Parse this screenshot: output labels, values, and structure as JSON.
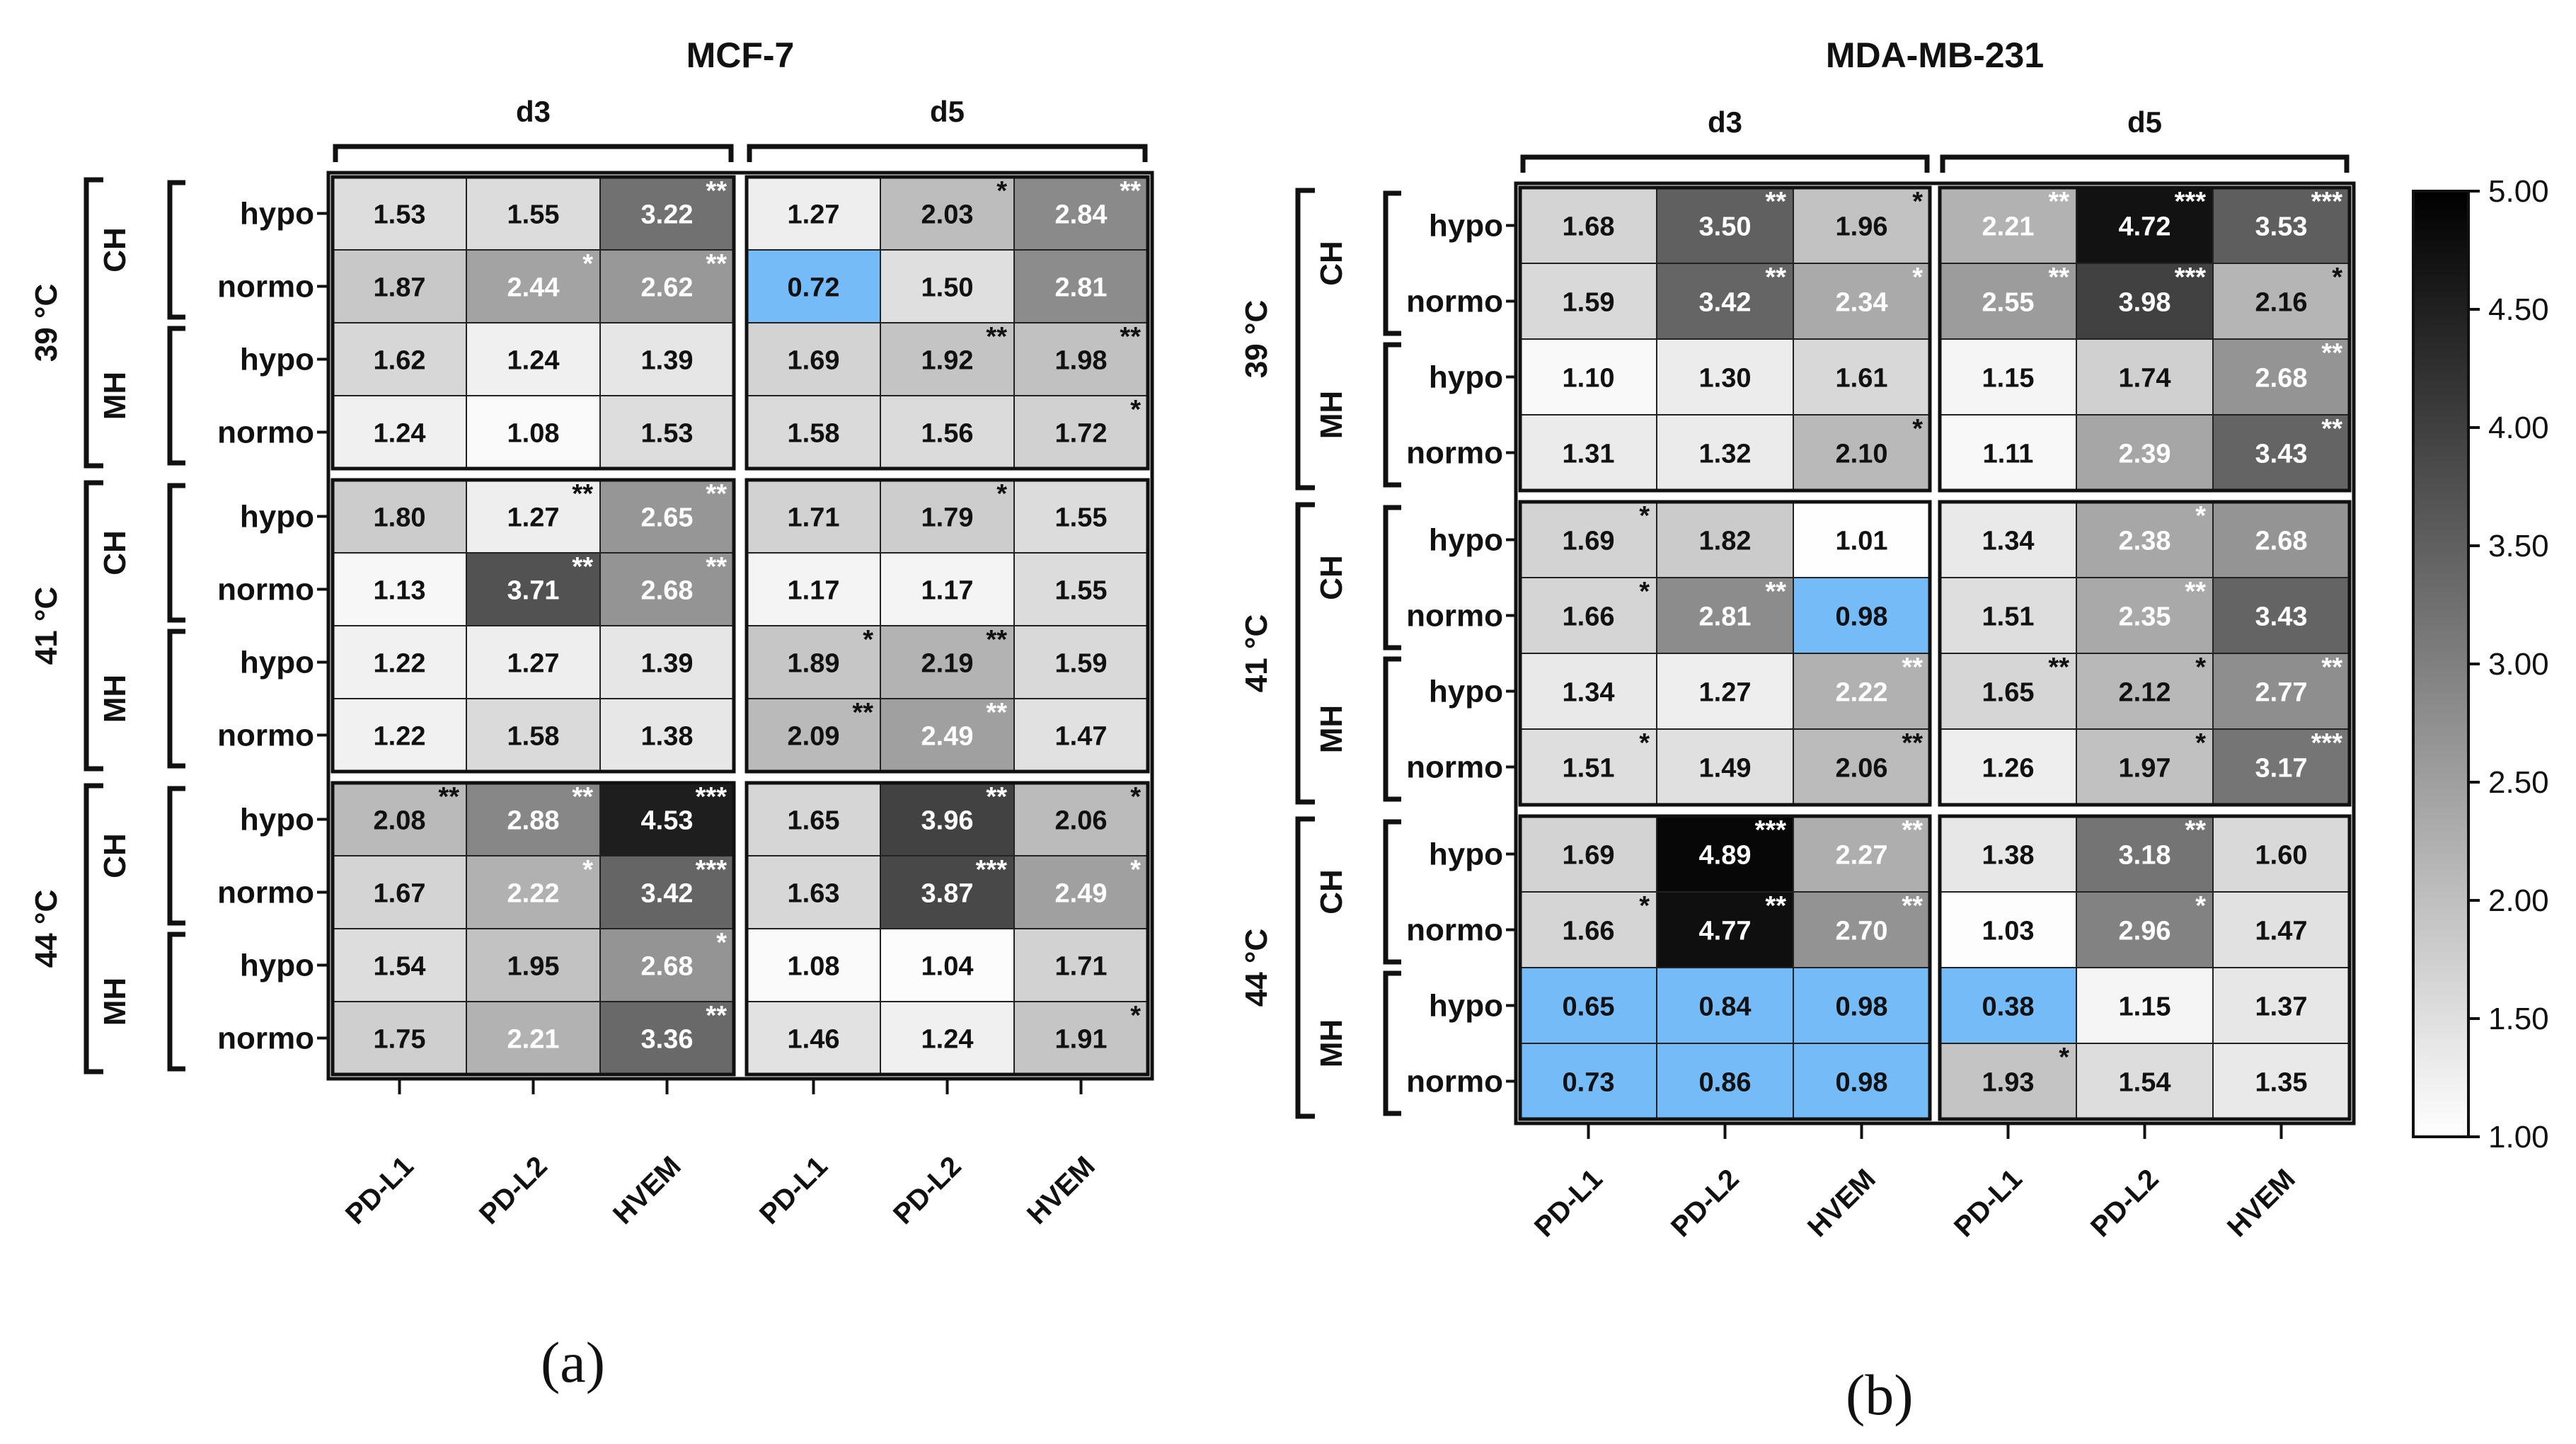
{
  "figure": {
    "panel_labels": [
      "(a)",
      "(b)"
    ],
    "colorbar": {
      "min": 1.0,
      "max": 5.0,
      "ticks": [
        "5.00",
        "4.50",
        "4.00",
        "3.50",
        "3.00",
        "2.50",
        "2.00",
        "1.50",
        "1.00"
      ],
      "below_min_color": "#74bbf8",
      "low_color": "#ffffff",
      "high_color": "#000000"
    }
  },
  "chart_data": [
    {
      "type": "heatmap",
      "title": "MCF-7",
      "panel_label": "(a)",
      "day_groups": [
        "d3",
        "d5"
      ],
      "columns": [
        "PD-L1",
        "PD-L2",
        "HVEM"
      ],
      "temperatures": [
        "39 °C",
        "41 °C",
        "44 °C"
      ],
      "methods": [
        "CH",
        "MH"
      ],
      "conditions": [
        "hypo",
        "normo"
      ],
      "rows": [
        {
          "temp": "39 °C",
          "method": "CH",
          "cond": "hypo",
          "values": [
            1.53,
            1.55,
            3.22,
            1.27,
            2.03,
            2.84
          ],
          "stars": [
            "",
            "",
            "**",
            "",
            "*",
            "**"
          ]
        },
        {
          "temp": "39 °C",
          "method": "CH",
          "cond": "normo",
          "values": [
            1.87,
            2.44,
            2.62,
            0.72,
            1.5,
            2.81
          ],
          "stars": [
            "",
            "*",
            "**",
            "",
            "",
            ""
          ]
        },
        {
          "temp": "39 °C",
          "method": "MH",
          "cond": "hypo",
          "values": [
            1.62,
            1.24,
            1.39,
            1.69,
            1.92,
            1.98
          ],
          "stars": [
            "",
            "",
            "",
            "",
            "**",
            "**"
          ]
        },
        {
          "temp": "39 °C",
          "method": "MH",
          "cond": "normo",
          "values": [
            1.24,
            1.08,
            1.53,
            1.58,
            1.56,
            1.72
          ],
          "stars": [
            "",
            "",
            "",
            "",
            "",
            "*"
          ]
        },
        {
          "temp": "41 °C",
          "method": "CH",
          "cond": "hypo",
          "values": [
            1.8,
            1.27,
            2.65,
            1.71,
            1.79,
            1.55
          ],
          "stars": [
            "",
            "**",
            "**",
            "",
            "*",
            ""
          ]
        },
        {
          "temp": "41 °C",
          "method": "CH",
          "cond": "normo",
          "values": [
            1.13,
            3.71,
            2.68,
            1.17,
            1.17,
            1.55
          ],
          "stars": [
            "",
            "**",
            "**",
            "",
            "",
            ""
          ]
        },
        {
          "temp": "41 °C",
          "method": "MH",
          "cond": "hypo",
          "values": [
            1.22,
            1.27,
            1.39,
            1.89,
            2.19,
            1.59
          ],
          "stars": [
            "",
            "",
            "",
            "*",
            "**",
            ""
          ]
        },
        {
          "temp": "41 °C",
          "method": "MH",
          "cond": "normo",
          "values": [
            1.22,
            1.58,
            1.38,
            2.09,
            2.49,
            1.47
          ],
          "stars": [
            "",
            "",
            "",
            "**",
            "**",
            ""
          ]
        },
        {
          "temp": "44 °C",
          "method": "CH",
          "cond": "hypo",
          "values": [
            2.08,
            2.88,
            4.53,
            1.65,
            3.96,
            2.06
          ],
          "stars": [
            "**",
            "**",
            "***",
            "",
            "**",
            "*"
          ]
        },
        {
          "temp": "44 °C",
          "method": "CH",
          "cond": "normo",
          "values": [
            1.67,
            2.22,
            3.42,
            1.63,
            3.87,
            2.49
          ],
          "stars": [
            "",
            "*",
            "***",
            "",
            "***",
            "*"
          ]
        },
        {
          "temp": "44 °C",
          "method": "MH",
          "cond": "hypo",
          "values": [
            1.54,
            1.95,
            2.68,
            1.08,
            1.04,
            1.71
          ],
          "stars": [
            "",
            "",
            "*",
            "",
            "",
            ""
          ]
        },
        {
          "temp": "44 °C",
          "method": "MH",
          "cond": "normo",
          "values": [
            1.75,
            2.21,
            3.36,
            1.46,
            1.24,
            1.91
          ],
          "stars": [
            "",
            "",
            "**",
            "",
            "",
            "*"
          ]
        }
      ]
    },
    {
      "type": "heatmap",
      "title": "MDA-MB-231",
      "panel_label": "(b)",
      "day_groups": [
        "d3",
        "d5"
      ],
      "columns": [
        "PD-L1",
        "PD-L2",
        "HVEM"
      ],
      "temperatures": [
        "39 °C",
        "41 °C",
        "44 °C"
      ],
      "methods": [
        "CH",
        "MH"
      ],
      "conditions": [
        "hypo",
        "normo"
      ],
      "rows": [
        {
          "temp": "39 °C",
          "method": "CH",
          "cond": "hypo",
          "values": [
            1.68,
            3.5,
            1.96,
            2.21,
            4.72,
            3.53
          ],
          "stars": [
            "",
            "**",
            "*",
            "**",
            "***",
            "***"
          ]
        },
        {
          "temp": "39 °C",
          "method": "CH",
          "cond": "normo",
          "values": [
            1.59,
            3.42,
            2.34,
            2.55,
            3.98,
            2.16
          ],
          "stars": [
            "",
            "**",
            "*",
            "**",
            "***",
            "*"
          ]
        },
        {
          "temp": "39 °C",
          "method": "MH",
          "cond": "hypo",
          "values": [
            1.1,
            1.3,
            1.61,
            1.15,
            1.74,
            2.68
          ],
          "stars": [
            "",
            "",
            "",
            "",
            "",
            "**"
          ]
        },
        {
          "temp": "39 °C",
          "method": "MH",
          "cond": "normo",
          "values": [
            1.31,
            1.32,
            2.1,
            1.11,
            2.39,
            3.43
          ],
          "stars": [
            "",
            "",
            "*",
            "",
            "",
            "**"
          ]
        },
        {
          "temp": "41 °C",
          "method": "CH",
          "cond": "hypo",
          "values": [
            1.69,
            1.82,
            1.01,
            1.34,
            2.38,
            2.68
          ],
          "stars": [
            "*",
            "",
            "",
            "",
            "*",
            ""
          ]
        },
        {
          "temp": "41 °C",
          "method": "CH",
          "cond": "normo",
          "values": [
            1.66,
            2.81,
            0.98,
            1.51,
            2.35,
            3.43
          ],
          "stars": [
            "*",
            "**",
            "",
            "",
            "**",
            ""
          ]
        },
        {
          "temp": "41 °C",
          "method": "MH",
          "cond": "hypo",
          "values": [
            1.34,
            1.27,
            2.22,
            1.65,
            2.12,
            2.77
          ],
          "stars": [
            "",
            "",
            "**",
            "**",
            "*",
            "**"
          ]
        },
        {
          "temp": "41 °C",
          "method": "MH",
          "cond": "normo",
          "values": [
            1.51,
            1.49,
            2.06,
            1.26,
            1.97,
            3.17
          ],
          "stars": [
            "*",
            "",
            "**",
            "",
            "*",
            "***"
          ]
        },
        {
          "temp": "44 °C",
          "method": "CH",
          "cond": "hypo",
          "values": [
            1.69,
            4.89,
            2.27,
            1.38,
            3.18,
            1.6
          ],
          "stars": [
            "",
            "***",
            "**",
            "",
            "**",
            ""
          ]
        },
        {
          "temp": "44 °C",
          "method": "CH",
          "cond": "normo",
          "values": [
            1.66,
            4.77,
            2.7,
            1.03,
            2.96,
            1.47
          ],
          "stars": [
            "*",
            "**",
            "**",
            "",
            "*",
            ""
          ]
        },
        {
          "temp": "44 °C",
          "method": "MH",
          "cond": "hypo",
          "values": [
            0.65,
            0.84,
            0.98,
            0.38,
            1.15,
            1.37
          ],
          "stars": [
            "",
            "",
            "",
            "",
            "",
            ""
          ]
        },
        {
          "temp": "44 °C",
          "method": "MH",
          "cond": "normo",
          "values": [
            0.73,
            0.86,
            0.98,
            1.93,
            1.54,
            1.35
          ],
          "stars": [
            "",
            "",
            "",
            "*",
            "",
            ""
          ]
        }
      ]
    }
  ]
}
